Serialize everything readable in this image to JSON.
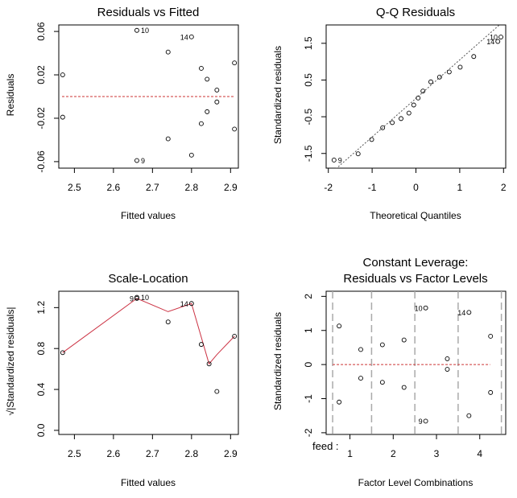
{
  "chart_data": [
    {
      "type": "scatter",
      "title": "Residuals vs Fitted",
      "xlabel": "Fitted values",
      "ylabel": "Residuals",
      "xticks": [
        "2.5",
        "2.6",
        "2.7",
        "2.8",
        "2.9"
      ],
      "yticks": [
        "-0.06",
        "-0.02",
        "0.02",
        "0.06"
      ],
      "xlim": [
        2.46,
        2.92
      ],
      "ylim": [
        -0.066,
        0.066
      ],
      "reference_line": 0,
      "points": [
        {
          "x": 2.47,
          "y": 0.02
        },
        {
          "x": 2.47,
          "y": -0.019
        },
        {
          "x": 2.66,
          "y": 0.061,
          "label": "10"
        },
        {
          "x": 2.66,
          "y": -0.059,
          "label": "9"
        },
        {
          "x": 2.74,
          "y": 0.041
        },
        {
          "x": 2.74,
          "y": -0.039
        },
        {
          "x": 2.8,
          "y": 0.055,
          "label": "14"
        },
        {
          "x": 2.8,
          "y": -0.054
        },
        {
          "x": 2.825,
          "y": 0.026
        },
        {
          "x": 2.825,
          "y": -0.025
        },
        {
          "x": 2.84,
          "y": 0.016
        },
        {
          "x": 2.84,
          "y": -0.014
        },
        {
          "x": 2.865,
          "y": 0.006
        },
        {
          "x": 2.865,
          "y": -0.005
        },
        {
          "x": 2.91,
          "y": 0.031
        },
        {
          "x": 2.91,
          "y": -0.03
        }
      ]
    },
    {
      "type": "scatter",
      "title": "Q-Q Residuals",
      "xlabel": "Theoretical Quantiles",
      "ylabel": "Standardized residuals",
      "xticks": [
        "-2",
        "-1",
        "0",
        "1",
        "2"
      ],
      "yticks": [
        "-1.5",
        "-0.5",
        "0.5",
        "1.5"
      ],
      "xlim": [
        -2.05,
        2.05
      ],
      "ylim": [
        -1.9,
        2.0
      ],
      "reference_line": {
        "slope": 1.05,
        "intercept": 0
      },
      "points": [
        {
          "x": -1.87,
          "y": -1.68,
          "label": "9"
        },
        {
          "x": -1.32,
          "y": -1.51
        },
        {
          "x": -1.01,
          "y": -1.12
        },
        {
          "x": -0.76,
          "y": -0.8
        },
        {
          "x": -0.54,
          "y": -0.66
        },
        {
          "x": -0.34,
          "y": -0.55
        },
        {
          "x": -0.16,
          "y": -0.4
        },
        {
          "x": -0.05,
          "y": -0.18
        },
        {
          "x": 0.05,
          "y": 0.01
        },
        {
          "x": 0.16,
          "y": 0.2
        },
        {
          "x": 0.34,
          "y": 0.45
        },
        {
          "x": 0.54,
          "y": 0.58
        },
        {
          "x": 0.76,
          "y": 0.72
        },
        {
          "x": 1.01,
          "y": 0.85
        },
        {
          "x": 1.32,
          "y": 1.14
        },
        {
          "x": 1.87,
          "y": 1.55,
          "label": "14"
        },
        {
          "x": 1.94,
          "y": 1.67,
          "label": "10"
        }
      ]
    },
    {
      "type": "scatter",
      "title": "Scale-Location",
      "xlabel": "Fitted values",
      "ylabel": "√|Standardized residuals|",
      "xticks": [
        "2.5",
        "2.6",
        "2.7",
        "2.8",
        "2.9"
      ],
      "yticks": [
        "0.0",
        "0.4",
        "0.8",
        "1.2"
      ],
      "xlim": [
        2.46,
        2.92
      ],
      "ylim": [
        -0.04,
        1.36
      ],
      "points": [
        {
          "x": 2.47,
          "y": 0.76
        },
        {
          "x": 2.66,
          "y": 1.3,
          "label": "10"
        },
        {
          "x": 2.66,
          "y": 1.29,
          "label": "9"
        },
        {
          "x": 2.74,
          "y": 1.06
        },
        {
          "x": 2.8,
          "y": 1.24,
          "label": "14"
        },
        {
          "x": 2.825,
          "y": 0.84
        },
        {
          "x": 2.845,
          "y": 0.65
        },
        {
          "x": 2.865,
          "y": 0.38
        },
        {
          "x": 2.91,
          "y": 0.92
        }
      ],
      "smooth_line": [
        {
          "x": 2.47,
          "y": 0.76
        },
        {
          "x": 2.66,
          "y": 1.29
        },
        {
          "x": 2.74,
          "y": 1.16
        },
        {
          "x": 2.8,
          "y": 1.24
        },
        {
          "x": 2.845,
          "y": 0.65
        },
        {
          "x": 2.865,
          "y": 0.74
        },
        {
          "x": 2.91,
          "y": 0.92
        }
      ]
    },
    {
      "type": "scatter",
      "title": "Constant Leverage:",
      "subtitle": "Residuals vs Factor Levels",
      "xlabel": "Factor Level Combinations",
      "ylabel": "Standardized residuals",
      "xticks": [
        "1",
        "2",
        "3",
        "4"
      ],
      "yticks": [
        "-2",
        "-1",
        "0",
        "1",
        "2"
      ],
      "xlim": [
        0.45,
        4.6
      ],
      "ylim": [
        -2.05,
        2.15
      ],
      "factor_label": "feed :",
      "reference_line": 0,
      "level_separators": [
        0.6,
        1.5,
        2.5,
        3.5,
        4.5
      ],
      "points": [
        {
          "x": 0.75,
          "y": 1.13
        },
        {
          "x": 0.75,
          "y": -1.1
        },
        {
          "x": 1.25,
          "y": 0.44
        },
        {
          "x": 1.25,
          "y": -0.4
        },
        {
          "x": 1.75,
          "y": 0.58
        },
        {
          "x": 1.75,
          "y": -0.52
        },
        {
          "x": 2.25,
          "y": 0.72
        },
        {
          "x": 2.25,
          "y": -0.67
        },
        {
          "x": 2.75,
          "y": 1.66,
          "label": "10"
        },
        {
          "x": 2.75,
          "y": -1.66,
          "label": "9"
        },
        {
          "x": 3.25,
          "y": 0.17
        },
        {
          "x": 3.25,
          "y": -0.14
        },
        {
          "x": 3.75,
          "y": 1.53,
          "label": "14"
        },
        {
          "x": 3.75,
          "y": -1.5
        },
        {
          "x": 4.25,
          "y": 0.83
        },
        {
          "x": 4.25,
          "y": -0.82
        }
      ]
    }
  ]
}
